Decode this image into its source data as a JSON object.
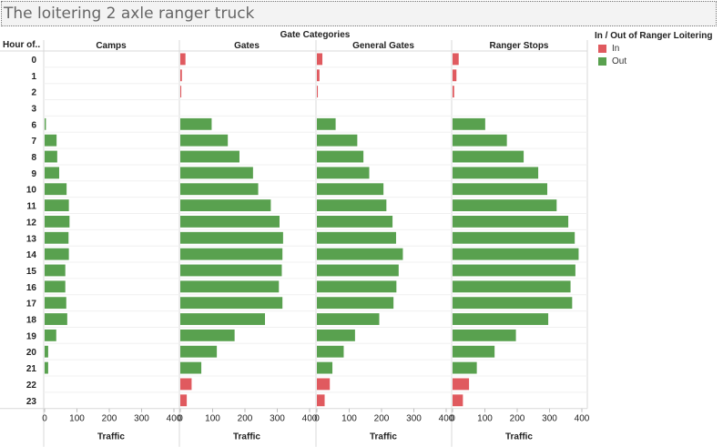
{
  "title": "The loitering 2 axle ranger truck",
  "colors": {
    "In": "#e05a5f",
    "Out": "#59a14f"
  },
  "legend": {
    "title": "In / Out of Ranger Loitering",
    "items": [
      "In",
      "Out"
    ]
  },
  "chart_data": {
    "type": "bar",
    "orientation": "horizontal",
    "title": "The loitering 2 axle ranger truck",
    "column_header": "Gate Categories",
    "row_header": "Hour of..",
    "xlabel": "Traffic",
    "xlim": [
      0,
      400
    ],
    "xticks": [
      0,
      100,
      200,
      300,
      400
    ],
    "legend_title": "In / Out of Ranger Loitering",
    "legend_position": "top-right",
    "grid": false,
    "hours": [
      "0",
      "1",
      "2",
      "3",
      "6",
      "7",
      "8",
      "9",
      "10",
      "11",
      "12",
      "13",
      "14",
      "15",
      "16",
      "17",
      "18",
      "19",
      "20",
      "21",
      "22",
      "23"
    ],
    "categories": [
      "Camps",
      "Gates",
      "General Gates",
      "Ranger Stops"
    ],
    "panels": [
      {
        "name": "Camps",
        "series": [
          {
            "name": "In",
            "values": [
              0,
              0,
              0,
              0,
              0,
              0,
              0,
              0,
              0,
              0,
              0,
              0,
              0,
              0,
              0,
              0,
              0,
              0,
              0,
              0,
              0,
              0
            ]
          },
          {
            "name": "Out",
            "values": [
              0,
              0,
              0,
              0,
              4,
              37,
              39,
              45,
              68,
              75,
              77,
              74,
              75,
              64,
              64,
              67,
              70,
              36,
              11,
              11,
              0,
              0
            ]
          }
        ]
      },
      {
        "name": "Gates",
        "series": [
          {
            "name": "In",
            "values": [
              16,
              5,
              3,
              0,
              0,
              0,
              0,
              0,
              0,
              0,
              0,
              0,
              0,
              0,
              0,
              0,
              0,
              0,
              0,
              0,
              35,
              20
            ]
          },
          {
            "name": "Out",
            "values": [
              0,
              0,
              0,
              0,
              97,
              147,
              183,
              225,
              241,
              280,
              307,
              318,
              316,
              314,
              305,
              316,
              262,
              168,
              113,
              65,
              0,
              0
            ]
          }
        ]
      },
      {
        "name": "General Gates",
        "series": [
          {
            "name": "In",
            "values": [
              17,
              8,
              3,
              0,
              0,
              0,
              0,
              0,
              0,
              0,
              0,
              0,
              0,
              0,
              0,
              0,
              0,
              0,
              0,
              0,
              40,
              24
            ]
          },
          {
            "name": "Out",
            "values": [
              0,
              0,
              0,
              0,
              58,
              125,
              144,
              162,
              206,
              215,
              234,
              245,
              266,
              253,
              246,
              237,
              193,
              118,
              83,
              48,
              0,
              0
            ]
          }
        ]
      },
      {
        "name": "Ranger Stops",
        "series": [
          {
            "name": "In",
            "values": [
              19,
              12,
              5,
              0,
              0,
              0,
              0,
              0,
              0,
              0,
              0,
              0,
              0,
              0,
              0,
              0,
              0,
              0,
              0,
              0,
              51,
              32
            ]
          },
          {
            "name": "Out",
            "values": [
              0,
              0,
              0,
              0,
              101,
              168,
              220,
              265,
              293,
              322,
              358,
              378,
              390,
              380,
              365,
              370,
              296,
              196,
              130,
              75,
              0,
              0
            ]
          }
        ]
      }
    ]
  }
}
